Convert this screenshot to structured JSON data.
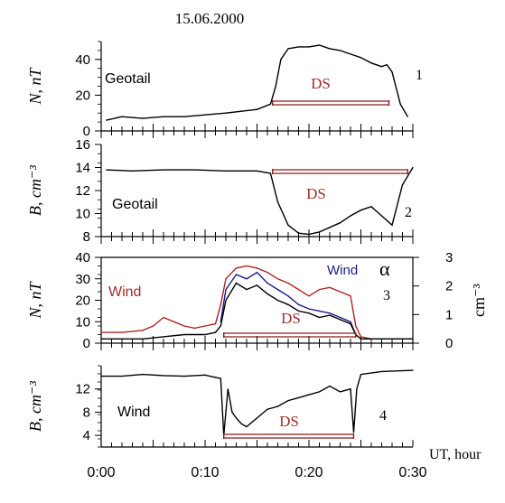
{
  "date_title": "15.06.2000",
  "x_axis": {
    "label": "UT, hour",
    "tick_labels": [
      "0:00",
      "0:10",
      "0:20",
      "0:30"
    ]
  },
  "colors": {
    "axis": "#000000",
    "ds_bar": "#8b1a1a",
    "ds_text": "#a52a2a",
    "wind_text": "#a52a2a",
    "wind_blue": "#1a1a8c",
    "red_series": "#b22222",
    "blue_series": "#1a1a8c",
    "black_series": "#000000"
  },
  "chart_data": [
    {
      "type": "line",
      "panel": "1",
      "number": "1",
      "ylabel": "N, nT",
      "ylim": [
        0,
        50
      ],
      "ytick_labels": [
        "0",
        "20",
        "40"
      ],
      "source_label": "Geotail",
      "ds_label": "DS",
      "ds_interval": [
        16.5,
        27.7
      ],
      "series": [
        {
          "x": [
            0.5,
            2,
            4,
            6,
            8,
            10,
            12,
            13.5,
            15,
            16.3,
            16.8,
            17.3,
            18,
            19,
            20,
            21,
            22,
            23,
            24,
            25,
            26,
            27,
            27.5,
            28,
            28.8,
            29.5
          ],
          "values": [
            6,
            8,
            7,
            8,
            8,
            9,
            10,
            11,
            12,
            15,
            25,
            40,
            46,
            47,
            47,
            48,
            46,
            45,
            43,
            41,
            38,
            36,
            37,
            33,
            15,
            8
          ]
        }
      ]
    },
    {
      "type": "line",
      "panel": "2",
      "number": "2",
      "ylabel": "B, cm⁻³",
      "ylim": [
        8,
        16
      ],
      "ytick_labels": [
        "8",
        "10",
        "12",
        "14",
        "16"
      ],
      "source_label": "Geotail",
      "ds_label": "DS",
      "ds_interval": [
        16.5,
        29.5
      ],
      "series": [
        {
          "x": [
            0.5,
            3,
            6,
            9,
            12,
            15,
            16.3,
            17,
            18,
            19,
            20,
            21,
            22,
            23,
            24,
            25,
            26,
            27,
            28,
            29,
            30
          ],
          "values": [
            13.8,
            13.7,
            13.8,
            13.8,
            13.7,
            13.7,
            13.5,
            11,
            9,
            8.3,
            8.2,
            8.4,
            8.8,
            9.2,
            9.8,
            10.3,
            10.6,
            9.8,
            9.0,
            12.5,
            14.0
          ]
        }
      ]
    },
    {
      "type": "line",
      "panel": "3",
      "number": "3",
      "ylabel": "N, nT",
      "ylabel_right": "cm⁻³",
      "right_symbol": "α",
      "ylim": [
        0,
        40
      ],
      "ylim_right": [
        0,
        3
      ],
      "ytick_labels": [
        "0",
        "10",
        "20",
        "30",
        "40"
      ],
      "ytick_labels_right": [
        "0",
        "1",
        "2",
        "3"
      ],
      "source_label": "Wind",
      "blue_label": "Wind",
      "ds_label": "DS",
      "ds_interval": [
        11.8,
        24.5
      ],
      "series": [
        {
          "color": "red",
          "x": [
            0,
            2,
            4,
            5,
            6,
            7,
            8,
            9,
            10,
            11,
            11.5,
            12,
            13,
            14,
            15,
            16,
            17,
            18,
            19,
            20,
            21,
            22,
            23,
            24,
            24.5,
            25,
            26,
            28,
            30
          ],
          "values": [
            5,
            5,
            6,
            8,
            12,
            10,
            8,
            7,
            8,
            9,
            18,
            30,
            35,
            36,
            35,
            33,
            30,
            28,
            25,
            22,
            25,
            26,
            24,
            22,
            8,
            3,
            2,
            2,
            2
          ]
        },
        {
          "color": "blue",
          "x": [
            11.5,
            12,
            13,
            14,
            15,
            16,
            17,
            18,
            19,
            20,
            21,
            22,
            23,
            24,
            24.5
          ],
          "values": [
            10,
            25,
            32,
            30,
            33,
            28,
            25,
            22,
            18,
            16,
            15,
            14,
            12,
            10,
            4
          ]
        },
        {
          "color": "black",
          "x": [
            0,
            2,
            4,
            6,
            8,
            10,
            11,
            11.5,
            12,
            13,
            14,
            15,
            16,
            17,
            18,
            19,
            20,
            21,
            22,
            23,
            24,
            24.5,
            25,
            26,
            28,
            30
          ],
          "values": [
            2,
            2,
            2,
            3,
            4,
            4,
            5,
            8,
            20,
            28,
            25,
            27,
            23,
            20,
            18,
            15,
            14,
            12,
            13,
            11,
            9,
            4,
            2,
            2,
            2,
            2
          ]
        }
      ]
    },
    {
      "type": "line",
      "panel": "4",
      "number": "4",
      "ylabel": "B, cm⁻³",
      "ylim": [
        2,
        16
      ],
      "ytick_labels": [
        "4",
        "8",
        "12"
      ],
      "source_label": "Wind",
      "ds_label": "DS",
      "ds_interval": [
        11.8,
        24.3
      ],
      "series": [
        {
          "x": [
            0,
            2,
            4,
            6,
            8,
            10,
            11,
            11.5,
            11.8,
            12.2,
            12.6,
            13,
            13.5,
            14,
            15,
            16,
            17,
            18,
            19,
            20,
            21,
            22,
            23,
            24,
            24.3,
            24.6,
            25,
            27,
            30
          ],
          "values": [
            14.2,
            14.2,
            14.5,
            14.3,
            14.2,
            14.4,
            14.0,
            13.8,
            4.0,
            12.0,
            8.0,
            7.0,
            6.0,
            5.5,
            7.0,
            8.5,
            9.0,
            10.0,
            10.5,
            11.0,
            11.5,
            12.5,
            11.5,
            12.0,
            4.5,
            12.0,
            14.5,
            15.0,
            15.2
          ]
        }
      ]
    }
  ]
}
